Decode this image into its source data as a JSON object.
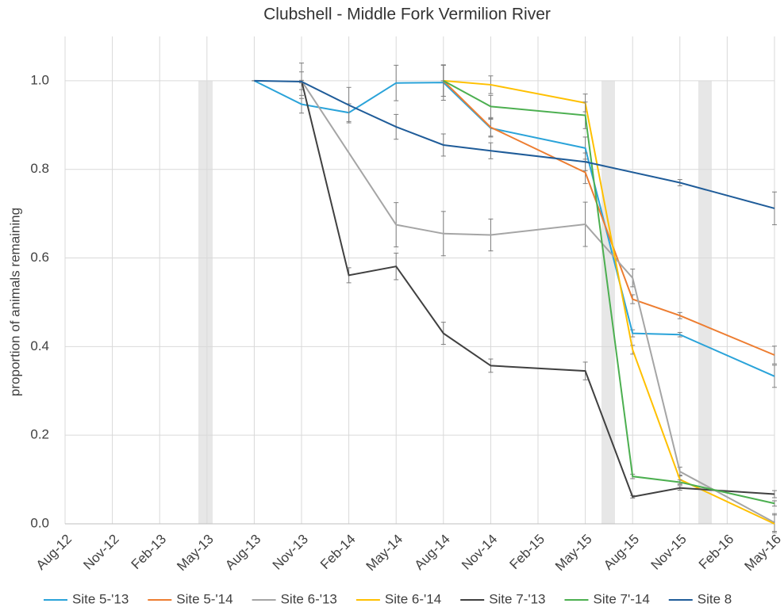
{
  "chart_data": {
    "type": "line",
    "title": "Clubshell - Middle Fork Vermilion River",
    "y_label": "proportion of animals remaining",
    "categories": [
      "Aug-12",
      "Nov-12",
      "Feb-13",
      "May-13",
      "Aug-13",
      "Nov-13",
      "Feb-14",
      "May-14",
      "Aug-14",
      "Nov-14",
      "Feb-15",
      "May-15",
      "Aug-15",
      "Nov-15",
      "Feb-16",
      "May-16"
    ],
    "ylim": [
      0,
      1.1
    ],
    "yticks": [
      {
        "value": 0,
        "label": "0.0"
      },
      0.2,
      0.4,
      0.6,
      0.8,
      {
        "value": 1,
        "label": "1.0"
      }
    ],
    "grid": true,
    "legend": "bottom",
    "error_color": "#7f7f7f",
    "series": [
      {
        "name": "Site 5-'13",
        "color": "#2aa3d9",
        "x": [
          "Aug-13",
          "Nov-13",
          "Feb-14",
          "May-14",
          "Aug-14",
          "Nov-14",
          "May-15",
          "Aug-15",
          "Nov-15",
          "May-16"
        ],
        "values": [
          1.0,
          0.947,
          0.928,
          0.995,
          0.996,
          0.893,
          0.848,
          0.43,
          0.427,
          0.333
        ],
        "errors": [
          0,
          0.02,
          0.02,
          0.04,
          0.04,
          0.02,
          0.025,
          0.008,
          0.005,
          0.025
        ]
      },
      {
        "name": "Site 5-'14",
        "color": "#ed7d31",
        "x": [
          "Aug-14",
          "Nov-14",
          "May-15",
          "Aug-15",
          "Nov-15",
          "May-16"
        ],
        "values": [
          1.0,
          0.895,
          0.793,
          0.507,
          0.47,
          0.381
        ],
        "errors": [
          0,
          0.02,
          0.025,
          0.01,
          0.007,
          0.02
        ]
      },
      {
        "name": "Site 6-'13",
        "color": "#a5a5a5",
        "x": [
          "Nov-13",
          "May-14",
          "Aug-14",
          "Nov-14",
          "May-15",
          "Aug-15",
          "Nov-15",
          "May-16"
        ],
        "values": [
          1.0,
          0.675,
          0.655,
          0.652,
          0.676,
          0.555,
          0.118,
          0.003
        ],
        "errors": [
          0.04,
          0.05,
          0.05,
          0.036,
          0.05,
          0.02,
          0.01,
          0.02
        ]
      },
      {
        "name": "Site 6-'14",
        "color": "#ffc000",
        "x": [
          "Aug-14",
          "Nov-14",
          "May-15",
          "Aug-15",
          "Nov-15",
          "May-16"
        ],
        "values": [
          1.0,
          0.991,
          0.95,
          0.393,
          0.1,
          0.0
        ],
        "errors": [
          0.035,
          0.02,
          0.02,
          0.01,
          0.01,
          0.02
        ]
      },
      {
        "name": "Site 7-'13",
        "color": "#404040",
        "x": [
          "Nov-13",
          "Feb-14",
          "May-14",
          "Aug-14",
          "Nov-14",
          "May-15",
          "Aug-15",
          "Nov-15",
          "May-16"
        ],
        "values": [
          1.0,
          0.561,
          0.581,
          0.43,
          0.357,
          0.345,
          0.061,
          0.081,
          0.067
        ],
        "errors": [
          0.02,
          0.017,
          0.03,
          0.025,
          0.015,
          0.02,
          0.003,
          0.005,
          0.008
        ]
      },
      {
        "name": "Site 7'-14",
        "color": "#4caf50",
        "x": [
          "Aug-14",
          "Nov-14",
          "May-15",
          "Aug-15",
          "Nov-15",
          "May-16"
        ],
        "values": [
          1.0,
          0.942,
          0.922,
          0.107,
          0.094,
          0.046
        ],
        "errors": [
          0.035,
          0.025,
          0.03,
          0.005,
          0.005,
          0.006
        ]
      },
      {
        "name": "Site 8",
        "color": "#1f5c99",
        "x": [
          "Aug-13",
          "Nov-13",
          "Feb-14",
          "May-14",
          "Aug-14",
          "Nov-14",
          "May-15",
          "Nov-15",
          "May-16"
        ],
        "values": [
          1.0,
          0.998,
          0.945,
          0.896,
          0.855,
          0.842,
          0.817,
          0.77,
          0.712
        ],
        "errors": [
          0,
          0.003,
          0.04,
          0.028,
          0.025,
          0.018,
          0.02,
          0.007,
          0.037
        ]
      }
    ]
  }
}
